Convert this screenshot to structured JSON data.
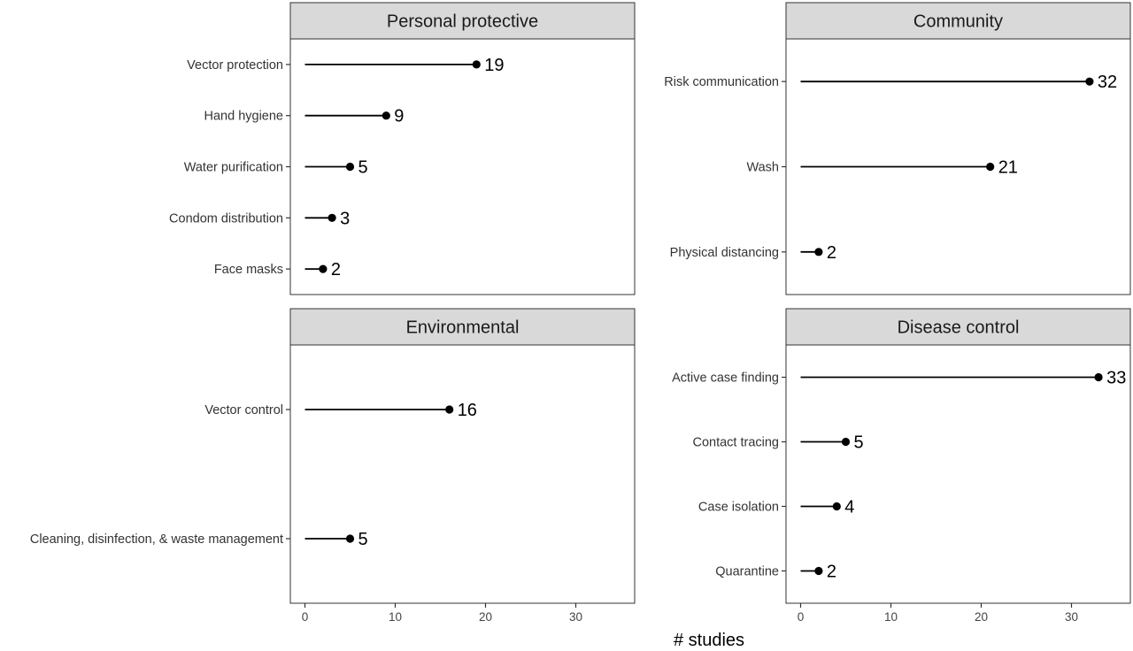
{
  "chart_data": {
    "type": "lollipop",
    "xlabel": "# studies",
    "xlim": [
      -1.5,
      36.5
    ],
    "x_ticks": [
      0,
      10,
      20,
      30
    ],
    "x_tick_labels": [
      "0",
      "10",
      "20",
      "30"
    ],
    "panels": [
      {
        "title": "Personal protective",
        "categories": [
          "Vector protection",
          "Hand hygiene",
          "Water purification",
          "Condom distribution",
          "Face masks"
        ],
        "values": [
          19,
          9,
          5,
          3,
          2
        ],
        "value_labels": [
          "19",
          "9",
          "5",
          "3",
          "2"
        ]
      },
      {
        "title": "Community",
        "categories": [
          "Risk communication",
          "Wash",
          "Physical distancing"
        ],
        "values": [
          32,
          21,
          2
        ],
        "value_labels": [
          "32",
          "21",
          "2"
        ]
      },
      {
        "title": "Environmental",
        "categories": [
          "Vector control",
          "Cleaning, disinfection, & waste management"
        ],
        "values": [
          16,
          5
        ],
        "value_labels": [
          "16",
          "5"
        ]
      },
      {
        "title": "Disease control",
        "categories": [
          "Active case finding",
          "Contact tracing",
          "Case isolation",
          "Quarantine"
        ],
        "values": [
          33,
          5,
          4,
          2
        ],
        "value_labels": [
          "33",
          "5",
          "4",
          "2"
        ]
      }
    ],
    "colors": {
      "strip_fill": "#d9d9d9",
      "panel_border": "#333333",
      "mark": "#000000"
    }
  }
}
